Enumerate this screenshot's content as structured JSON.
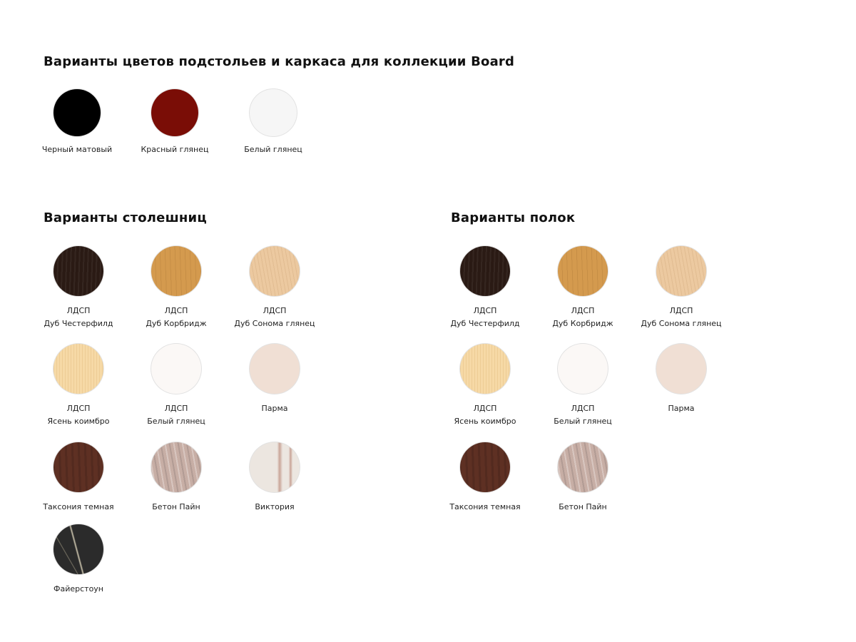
{
  "frame": {
    "title": "Варианты цветов подстольев и каркаса для коллекции Board",
    "items": [
      {
        "label": "Черный матовый",
        "color": "#000000"
      },
      {
        "label": "Красный глянец",
        "color": "#7a0d06"
      },
      {
        "label": "Белый глянец",
        "color": "#f6f6f6"
      }
    ]
  },
  "tops": {
    "title": "Варианты столешниц",
    "items": [
      {
        "material": "ЛДСП",
        "label": "Дуб Честерфилд",
        "color": "#2a1a14"
      },
      {
        "material": "ЛДСП",
        "label": "Дуб Корбридж",
        "color": "#d49a4e"
      },
      {
        "material": "ЛДСП",
        "label": "Дуб Сонома глянец",
        "color": "#ecc9a0"
      },
      {
        "material": "ЛДСП",
        "label": "Ясень коимбро",
        "color": "#f6d9a6"
      },
      {
        "material": "ЛДСП",
        "label": "Белый глянец",
        "color": "#fbf8f6"
      },
      {
        "label": "Парма",
        "color": "#f0dfd4"
      },
      {
        "label": "Таксония темная",
        "color": "#5e3023"
      },
      {
        "label": "Бетон Пайн",
        "color": "#c7aea5"
      },
      {
        "label": "Виктория",
        "color": "#ece6e0"
      },
      {
        "label": "Файерстоун",
        "color": "#2b2b2b"
      }
    ]
  },
  "shelves": {
    "title": "Варианты полок",
    "items": [
      {
        "material": "ЛДСП",
        "label": "Дуб Честерфилд",
        "color": "#2a1a14"
      },
      {
        "material": "ЛДСП",
        "label": "Дуб Корбридж",
        "color": "#d49a4e"
      },
      {
        "material": "ЛДСП",
        "label": "Дуб Сонома глянец",
        "color": "#ecc9a0"
      },
      {
        "material": "ЛДСП",
        "label": "Ясень коимбро",
        "color": "#f6d9a6"
      },
      {
        "material": "ЛДСП",
        "label": "Белый глянец",
        "color": "#fbf8f6"
      },
      {
        "label": "Парма",
        "color": "#f0dfd4"
      },
      {
        "label": "Таксония темная",
        "color": "#5e3023"
      },
      {
        "label": "Бетон Пайн",
        "color": "#c7aea5"
      }
    ]
  }
}
